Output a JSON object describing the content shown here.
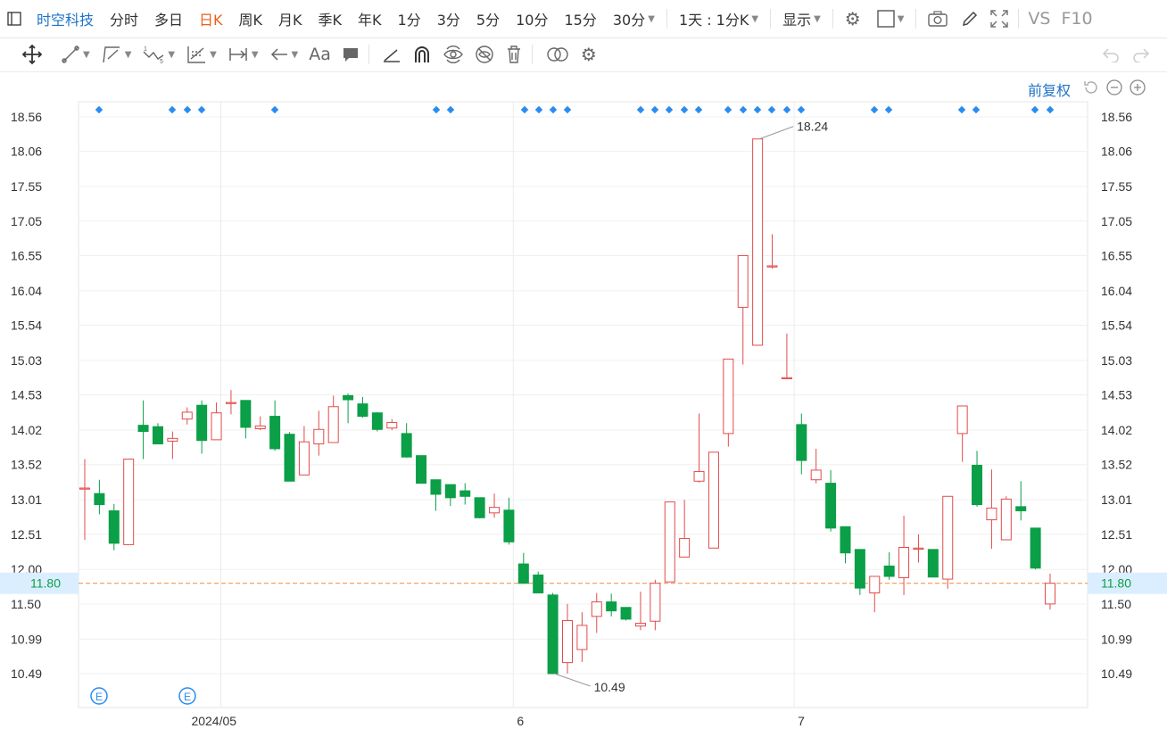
{
  "toolbar": {
    "stock_name": "时空科技",
    "periods": [
      "分时",
      "多日",
      "日K",
      "周K",
      "月K",
      "季K",
      "年K",
      "1分",
      "3分",
      "5分",
      "10分",
      "15分",
      "30分"
    ],
    "active_period": "日K",
    "period_dropdown": "1天 : 1分K",
    "display_label": "显示",
    "vs_label": "VS",
    "f10_label": "F10"
  },
  "drawing_tools": {
    "text_tool_label": "Aa"
  },
  "chart_controls": {
    "adjust_label": "前复权"
  },
  "chart_data": {
    "type": "candlestick",
    "y_ticks": [
      "18.56",
      "18.06",
      "17.55",
      "17.05",
      "16.55",
      "16.04",
      "15.54",
      "15.03",
      "14.53",
      "14.02",
      "13.52",
      "13.01",
      "12.51",
      "12.00",
      "11.50",
      "10.99",
      "10.49"
    ],
    "ylim": [
      10.25,
      18.81
    ],
    "x_labels": [
      "2024/05",
      "6",
      "7"
    ],
    "current_price": "11.80",
    "high_label": "18.24",
    "low_label": "10.49",
    "event_marker_label": "E",
    "colors": {
      "up": "#e24b4b",
      "down": "#0b9f47",
      "price_line": "#f08a3c",
      "current_bg": "#dbeeff"
    },
    "candles": [
      {
        "o": 13.18,
        "h": 13.6,
        "l": 12.43,
        "c": 13.18
      },
      {
        "o": 13.1,
        "h": 13.3,
        "l": 12.8,
        "c": 12.94
      },
      {
        "o": 12.85,
        "h": 12.95,
        "l": 12.28,
        "c": 12.38
      },
      {
        "o": 12.36,
        "h": 13.6,
        "l": 12.36,
        "c": 13.6
      },
      {
        "o": 14.09,
        "h": 14.45,
        "l": 13.6,
        "c": 14.0
      },
      {
        "o": 14.07,
        "h": 14.12,
        "l": 13.82,
        "c": 13.82
      },
      {
        "o": 13.86,
        "h": 14.0,
        "l": 13.6,
        "c": 13.9
      },
      {
        "o": 14.18,
        "h": 14.35,
        "l": 14.1,
        "c": 14.28
      },
      {
        "o": 14.38,
        "h": 14.45,
        "l": 13.68,
        "c": 13.87
      },
      {
        "o": 13.88,
        "h": 14.42,
        "l": 13.88,
        "c": 14.27
      },
      {
        "o": 14.42,
        "h": 14.6,
        "l": 14.25,
        "c": 14.42
      },
      {
        "o": 14.45,
        "h": 14.45,
        "l": 13.9,
        "c": 14.06
      },
      {
        "o": 14.04,
        "h": 14.22,
        "l": 14.02,
        "c": 14.08
      },
      {
        "o": 14.22,
        "h": 14.45,
        "l": 13.72,
        "c": 13.75
      },
      {
        "o": 13.96,
        "h": 13.99,
        "l": 13.28,
        "c": 13.28
      },
      {
        "o": 13.37,
        "h": 14.08,
        "l": 13.37,
        "c": 13.85
      },
      {
        "o": 13.82,
        "h": 14.3,
        "l": 13.65,
        "c": 14.03
      },
      {
        "o": 13.84,
        "h": 14.52,
        "l": 13.84,
        "c": 14.36
      },
      {
        "o": 14.52,
        "h": 14.55,
        "l": 14.12,
        "c": 14.46
      },
      {
        "o": 14.4,
        "h": 14.5,
        "l": 14.2,
        "c": 14.22
      },
      {
        "o": 14.27,
        "h": 14.28,
        "l": 14.0,
        "c": 14.03
      },
      {
        "o": 14.05,
        "h": 14.18,
        "l": 14.02,
        "c": 14.13
      },
      {
        "o": 13.97,
        "h": 14.12,
        "l": 13.62,
        "c": 13.63
      },
      {
        "o": 13.65,
        "h": 13.65,
        "l": 13.25,
        "c": 13.25
      },
      {
        "o": 13.3,
        "h": 13.3,
        "l": 12.85,
        "c": 13.09
      },
      {
        "o": 13.23,
        "h": 13.23,
        "l": 12.92,
        "c": 13.04
      },
      {
        "o": 13.14,
        "h": 13.25,
        "l": 12.94,
        "c": 13.06
      },
      {
        "o": 13.04,
        "h": 13.04,
        "l": 12.74,
        "c": 12.75
      },
      {
        "o": 12.82,
        "h": 13.1,
        "l": 12.75,
        "c": 12.9
      },
      {
        "o": 12.86,
        "h": 13.04,
        "l": 12.36,
        "c": 12.4
      },
      {
        "o": 12.08,
        "h": 12.24,
        "l": 11.8,
        "c": 11.8
      },
      {
        "o": 11.92,
        "h": 11.97,
        "l": 11.66,
        "c": 11.66
      },
      {
        "o": 11.63,
        "h": 11.66,
        "l": 10.49,
        "c": 10.49
      },
      {
        "o": 10.65,
        "h": 11.5,
        "l": 10.49,
        "c": 11.26
      },
      {
        "o": 10.84,
        "h": 11.38,
        "l": 10.66,
        "c": 11.19
      },
      {
        "o": 11.32,
        "h": 11.66,
        "l": 11.08,
        "c": 11.53
      },
      {
        "o": 11.53,
        "h": 11.65,
        "l": 11.32,
        "c": 11.4
      },
      {
        "o": 11.45,
        "h": 11.45,
        "l": 11.26,
        "c": 11.28
      },
      {
        "o": 11.18,
        "h": 11.68,
        "l": 11.12,
        "c": 11.22
      },
      {
        "o": 11.25,
        "h": 11.85,
        "l": 11.12,
        "c": 11.8
      },
      {
        "o": 11.82,
        "h": 12.98,
        "l": 11.82,
        "c": 12.98
      },
      {
        "o": 12.18,
        "h": 13.01,
        "l": 12.18,
        "c": 12.45
      },
      {
        "o": 13.28,
        "h": 14.26,
        "l": 13.26,
        "c": 13.42
      },
      {
        "o": 12.31,
        "h": 13.7,
        "l": 12.31,
        "c": 13.7
      },
      {
        "o": 13.97,
        "h": 15.05,
        "l": 13.78,
        "c": 15.05
      },
      {
        "o": 15.8,
        "h": 16.55,
        "l": 14.97,
        "c": 16.55
      },
      {
        "o": 15.25,
        "h": 18.24,
        "l": 15.25,
        "c": 18.24
      },
      {
        "o": 16.4,
        "h": 16.86,
        "l": 16.36,
        "c": 16.4
      },
      {
        "o": 14.78,
        "h": 15.42,
        "l": 14.76,
        "c": 14.78
      },
      {
        "o": 14.1,
        "h": 14.26,
        "l": 13.38,
        "c": 13.58
      },
      {
        "o": 13.3,
        "h": 13.75,
        "l": 13.25,
        "c": 13.44
      },
      {
        "o": 13.25,
        "h": 13.44,
        "l": 12.55,
        "c": 12.6
      },
      {
        "o": 12.62,
        "h": 12.62,
        "l": 12.09,
        "c": 12.24
      },
      {
        "o": 12.29,
        "h": 12.29,
        "l": 11.63,
        "c": 11.73
      },
      {
        "o": 11.66,
        "h": 11.9,
        "l": 11.38,
        "c": 11.9
      },
      {
        "o": 12.05,
        "h": 12.25,
        "l": 11.85,
        "c": 11.9
      },
      {
        "o": 11.88,
        "h": 12.78,
        "l": 11.63,
        "c": 12.32
      },
      {
        "o": 12.31,
        "h": 12.51,
        "l": 12.1,
        "c": 12.31
      },
      {
        "o": 12.29,
        "h": 12.29,
        "l": 11.89,
        "c": 11.89
      },
      {
        "o": 11.86,
        "h": 13.06,
        "l": 11.72,
        "c": 13.06
      },
      {
        "o": 13.97,
        "h": 14.37,
        "l": 13.56,
        "c": 14.37
      },
      {
        "o": 13.51,
        "h": 13.72,
        "l": 12.91,
        "c": 12.94
      },
      {
        "o": 12.72,
        "h": 13.45,
        "l": 12.3,
        "c": 12.89
      },
      {
        "o": 12.43,
        "h": 13.06,
        "l": 12.43,
        "c": 13.02
      },
      {
        "o": 12.91,
        "h": 13.28,
        "l": 12.71,
        "c": 12.85
      },
      {
        "o": 12.6,
        "h": 12.6,
        "l": 12.0,
        "c": 12.02
      },
      {
        "o": 11.5,
        "h": 11.94,
        "l": 11.42,
        "c": 11.8
      }
    ]
  }
}
